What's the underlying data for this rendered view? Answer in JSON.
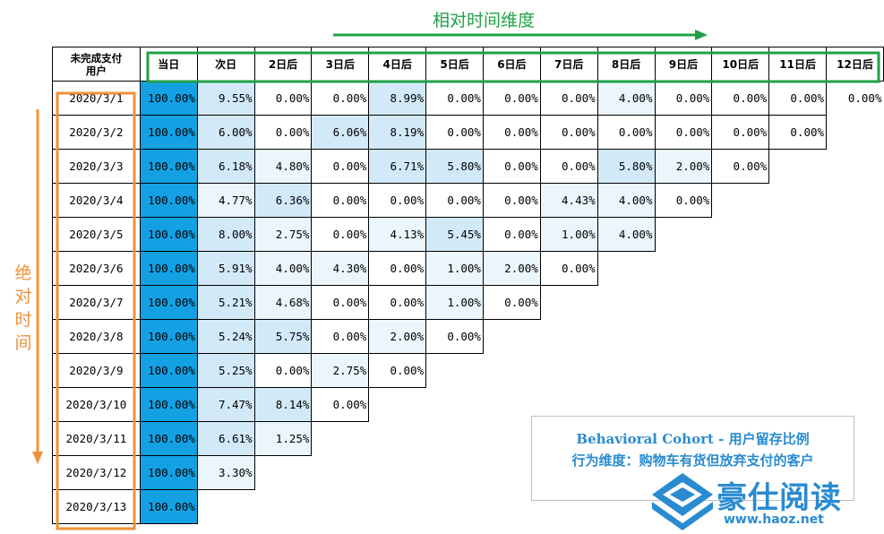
{
  "relative_axis_label": "相对时间维度",
  "absolute_axis_label": [
    "绝",
    "对",
    "时",
    "间"
  ],
  "legend": {
    "line1": "Behavioral Cohort - 用户留存比例",
    "line2": "行为维度：购物车有货但放弃支付的客户"
  },
  "watermark": {
    "name": "豪仕阅读",
    "url": "www.haoz.net"
  },
  "colors": {
    "day0_fill": "#13a1e4",
    "relative_arrow": "#1fa146",
    "absolute_arrow": "#f0913a",
    "heat_light": "#eaf5fc",
    "heat_mid": "#d2eaf8"
  },
  "chart_data": {
    "type": "table",
    "corner_header": [
      "未完成支付",
      "用户"
    ],
    "columns": [
      "当日",
      "次日",
      "2日后",
      "3日后",
      "4日后",
      "5日后",
      "6日后",
      "7日后",
      "8日后",
      "9日后",
      "10日后",
      "11日后",
      "12日后"
    ],
    "rows": [
      {
        "date": "2020/3/1",
        "values": [
          "100.00%",
          "9.55%",
          "0.00%",
          "0.00%",
          "8.99%",
          "0.00%",
          "0.00%",
          "0.00%",
          "4.00%",
          "0.00%",
          "0.00%",
          "0.00%",
          "0.00%"
        ]
      },
      {
        "date": "2020/3/2",
        "values": [
          "100.00%",
          "6.00%",
          "0.00%",
          "6.06%",
          "8.19%",
          "0.00%",
          "0.00%",
          "0.00%",
          "0.00%",
          "0.00%",
          "0.00%",
          "0.00%"
        ]
      },
      {
        "date": "2020/3/3",
        "values": [
          "100.00%",
          "6.18%",
          "4.80%",
          "0.00%",
          "6.71%",
          "5.80%",
          "0.00%",
          "0.00%",
          "5.80%",
          "2.00%",
          "0.00%"
        ]
      },
      {
        "date": "2020/3/4",
        "values": [
          "100.00%",
          "4.77%",
          "6.36%",
          "0.00%",
          "0.00%",
          "0.00%",
          "0.00%",
          "4.43%",
          "4.00%",
          "0.00%"
        ]
      },
      {
        "date": "2020/3/5",
        "values": [
          "100.00%",
          "8.00%",
          "2.75%",
          "0.00%",
          "4.13%",
          "5.45%",
          "0.00%",
          "1.00%",
          "4.00%"
        ]
      },
      {
        "date": "2020/3/6",
        "values": [
          "100.00%",
          "5.91%",
          "4.00%",
          "4.30%",
          "0.00%",
          "1.00%",
          "2.00%",
          "0.00%"
        ]
      },
      {
        "date": "2020/3/7",
        "values": [
          "100.00%",
          "5.21%",
          "4.68%",
          "0.00%",
          "0.00%",
          "1.00%",
          "0.00%"
        ]
      },
      {
        "date": "2020/3/8",
        "values": [
          "100.00%",
          "5.24%",
          "5.75%",
          "0.00%",
          "2.00%",
          "0.00%"
        ]
      },
      {
        "date": "2020/3/9",
        "values": [
          "100.00%",
          "5.25%",
          "0.00%",
          "2.75%",
          "0.00%"
        ]
      },
      {
        "date": "2020/3/10",
        "values": [
          "100.00%",
          "7.47%",
          "8.14%",
          "0.00%"
        ]
      },
      {
        "date": "2020/3/11",
        "values": [
          "100.00%",
          "6.61%",
          "1.25%"
        ]
      },
      {
        "date": "2020/3/12",
        "values": [
          "100.00%",
          "3.30%"
        ]
      },
      {
        "date": "2020/3/13",
        "values": [
          "100.00%"
        ]
      }
    ]
  }
}
